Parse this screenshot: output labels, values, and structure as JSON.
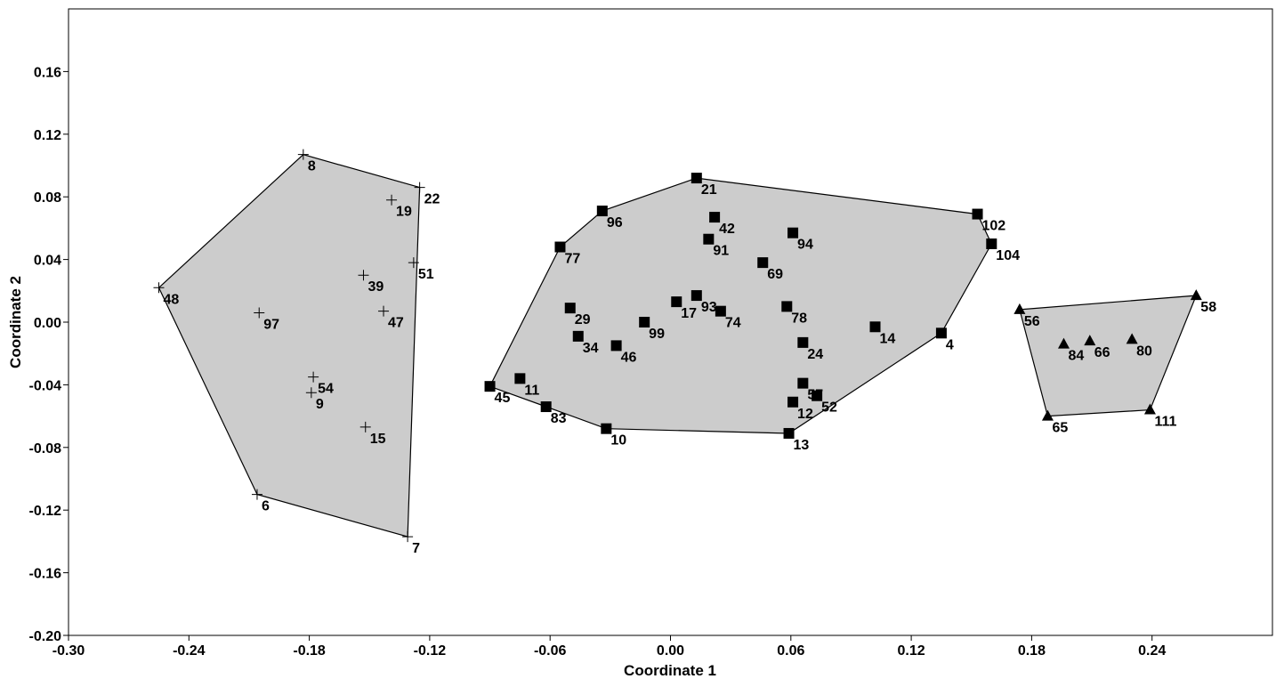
{
  "chart_data": {
    "type": "scatter",
    "xlabel": "Coordinate 1",
    "ylabel": "Coordinate 2",
    "xlim": [
      -0.3,
      0.3
    ],
    "ylim": [
      -0.2,
      0.2
    ],
    "xticks": [
      -0.3,
      -0.24,
      -0.18,
      -0.12,
      -0.06,
      0.0,
      0.06,
      0.12,
      0.18,
      0.24
    ],
    "xtick_labels": [
      "-0.30",
      "-0.24",
      "-0.18",
      "-0.12",
      "-0.06",
      "0.00",
      "0.06",
      "0.12",
      "0.18",
      "0.24"
    ],
    "yticks": [
      -0.2,
      -0.16,
      -0.12,
      -0.08,
      -0.04,
      0.0,
      0.04,
      0.08,
      0.12,
      0.16
    ],
    "ytick_labels": [
      "-0.20",
      "-0.16",
      "-0.12",
      "-0.08",
      "-0.04",
      "0.00",
      "0.04",
      "0.08",
      "0.12",
      "0.16"
    ],
    "grid": false,
    "hull_fill": "#cccccc",
    "groups": [
      {
        "marker": "plus",
        "hull": [
          "48",
          "8",
          "22",
          "7",
          "6"
        ],
        "points": [
          {
            "label": "8",
            "x": -0.183,
            "y": 0.107
          },
          {
            "label": "22",
            "x": -0.125,
            "y": 0.086
          },
          {
            "label": "19",
            "x": -0.139,
            "y": 0.078
          },
          {
            "label": "51",
            "x": -0.128,
            "y": 0.038
          },
          {
            "label": "39",
            "x": -0.153,
            "y": 0.03
          },
          {
            "label": "48",
            "x": -0.255,
            "y": 0.022
          },
          {
            "label": "47",
            "x": -0.143,
            "y": 0.007
          },
          {
            "label": "97",
            "x": -0.205,
            "y": 0.006
          },
          {
            "label": "54",
            "x": -0.178,
            "y": -0.035
          },
          {
            "label": "9",
            "x": -0.179,
            "y": -0.045
          },
          {
            "label": "15",
            "x": -0.152,
            "y": -0.067
          },
          {
            "label": "6",
            "x": -0.206,
            "y": -0.11
          },
          {
            "label": "7",
            "x": -0.131,
            "y": -0.137
          }
        ]
      },
      {
        "marker": "square",
        "hull": [
          "45",
          "77",
          "96",
          "21",
          "102",
          "104",
          "4",
          "13",
          "10",
          "83"
        ],
        "points": [
          {
            "label": "21",
            "x": 0.013,
            "y": 0.092
          },
          {
            "label": "96",
            "x": -0.034,
            "y": 0.071
          },
          {
            "label": "102",
            "x": 0.153,
            "y": 0.069
          },
          {
            "label": "42",
            "x": 0.022,
            "y": 0.067
          },
          {
            "label": "94",
            "x": 0.061,
            "y": 0.057
          },
          {
            "label": "91",
            "x": 0.019,
            "y": 0.053
          },
          {
            "label": "104",
            "x": 0.16,
            "y": 0.05
          },
          {
            "label": "77",
            "x": -0.055,
            "y": 0.048
          },
          {
            "label": "69",
            "x": 0.046,
            "y": 0.038
          },
          {
            "label": "93",
            "x": 0.013,
            "y": 0.017
          },
          {
            "label": "17",
            "x": 0.003,
            "y": 0.013
          },
          {
            "label": "78",
            "x": 0.058,
            "y": 0.01
          },
          {
            "label": "29",
            "x": -0.05,
            "y": 0.009
          },
          {
            "label": "74",
            "x": 0.025,
            "y": 0.007
          },
          {
            "label": "99",
            "x": -0.013,
            "y": 0.0
          },
          {
            "label": "14",
            "x": 0.102,
            "y": -0.003
          },
          {
            "label": "4",
            "x": 0.135,
            "y": -0.007
          },
          {
            "label": "34",
            "x": -0.046,
            "y": -0.009
          },
          {
            "label": "24",
            "x": 0.066,
            "y": -0.013
          },
          {
            "label": "46",
            "x": -0.027,
            "y": -0.015
          },
          {
            "label": "11",
            "x": -0.075,
            "y": -0.036
          },
          {
            "label": "57",
            "x": 0.066,
            "y": -0.039
          },
          {
            "label": "45",
            "x": -0.09,
            "y": -0.041
          },
          {
            "label": "52",
            "x": 0.073,
            "y": -0.047
          },
          {
            "label": "12",
            "x": 0.061,
            "y": -0.051
          },
          {
            "label": "83",
            "x": -0.062,
            "y": -0.054
          },
          {
            "label": "10",
            "x": -0.032,
            "y": -0.068
          },
          {
            "label": "13",
            "x": 0.059,
            "y": -0.071
          }
        ]
      },
      {
        "marker": "triangle",
        "hull": [
          "56",
          "58",
          "111",
          "65"
        ],
        "points": [
          {
            "label": "58",
            "x": 0.262,
            "y": 0.017
          },
          {
            "label": "56",
            "x": 0.174,
            "y": 0.008
          },
          {
            "label": "80",
            "x": 0.23,
            "y": -0.011
          },
          {
            "label": "66",
            "x": 0.209,
            "y": -0.012
          },
          {
            "label": "84",
            "x": 0.196,
            "y": -0.014
          },
          {
            "label": "111",
            "x": 0.239,
            "y": -0.056
          },
          {
            "label": "65",
            "x": 0.188,
            "y": -0.06
          }
        ]
      }
    ]
  }
}
